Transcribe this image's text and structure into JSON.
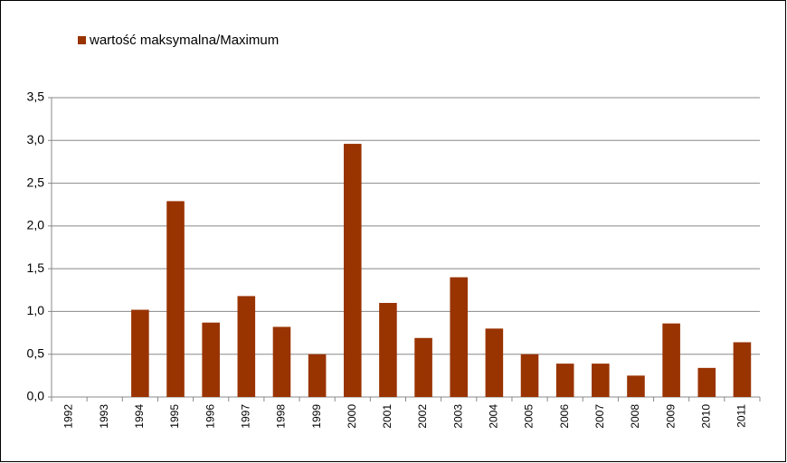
{
  "chart_data": {
    "type": "bar",
    "legend": "wartość maksymalna/Maximum",
    "categories": [
      "1992",
      "1993",
      "1994",
      "1995",
      "1996",
      "1997",
      "1998",
      "1999",
      "2000",
      "2001",
      "2002",
      "2003",
      "2004",
      "2005",
      "2006",
      "2007",
      "2008",
      "2009",
      "2010",
      "2011"
    ],
    "values": [
      null,
      null,
      1.02,
      2.29,
      0.87,
      1.18,
      0.82,
      0.5,
      2.96,
      1.1,
      0.69,
      1.4,
      0.8,
      0.5,
      0.39,
      0.39,
      0.25,
      0.86,
      0.34,
      0.64
    ],
    "color": "#993300",
    "ylim": [
      0,
      3.5
    ],
    "yticks": [
      {
        "value": 0,
        "label": "0,0"
      },
      {
        "value": 0.5,
        "label": "0,5"
      },
      {
        "value": 1,
        "label": "1,0"
      },
      {
        "value": 1.5,
        "label": "1,5"
      },
      {
        "value": 2,
        "label": "2,0"
      },
      {
        "value": 2.5,
        "label": "2,5"
      },
      {
        "value": 3,
        "label": "3,0"
      },
      {
        "value": 3.5,
        "label": "3,5"
      }
    ],
    "grid": true
  }
}
